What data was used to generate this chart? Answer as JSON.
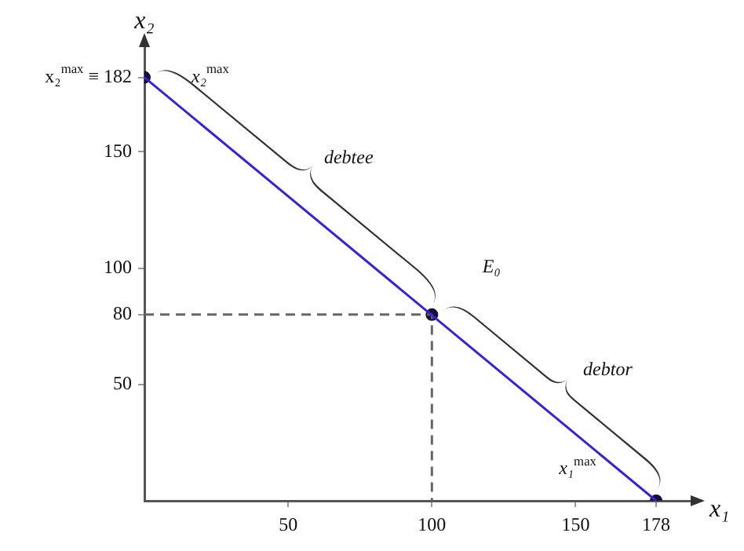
{
  "chart_data": {
    "type": "line",
    "xlabel": "x₁",
    "ylabel": "x₂",
    "xlim": [
      0,
      190
    ],
    "ylim": [
      0,
      195
    ],
    "xticks": [
      50,
      100,
      150,
      178
    ],
    "yticks": [
      50,
      80,
      100,
      150,
      {
        "value": 182,
        "label": "x₂$^{max}$ ≡ 182"
      }
    ],
    "series": [
      {
        "color": "#3b1ee0",
        "x": [
          0,
          178
        ],
        "values": [
          182,
          0
        ]
      },
      {
        "color": "#666666",
        "line_style": "dashed",
        "x": [
          0,
          100,
          100
        ],
        "values": [
          80,
          80,
          0
        ]
      },
      {
        "type": "scatter",
        "color": "#111133",
        "marker": "circle",
        "x": [
          0,
          100,
          178
        ],
        "values": [
          182,
          80,
          0
        ]
      }
    ],
    "annotations": [
      "x₂$^{max}$",
      "debtee",
      "E₀",
      "debtor",
      "x₁$^{max}$"
    ],
    "legend": false
  }
}
